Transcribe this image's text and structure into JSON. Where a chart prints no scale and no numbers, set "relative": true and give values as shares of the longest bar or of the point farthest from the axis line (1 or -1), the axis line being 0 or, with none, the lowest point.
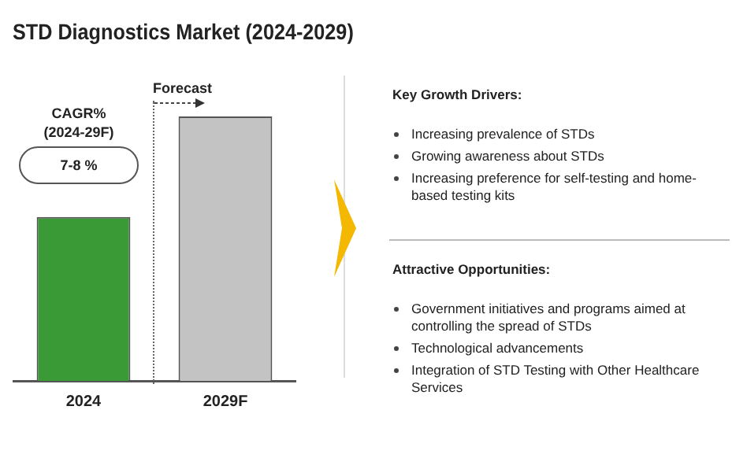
{
  "chart_data": {
    "type": "bar",
    "title": "STD Diagnostics Market (2024-2029)",
    "categories": [
      "2024",
      "2029F"
    ],
    "values": [
      0.62,
      1
    ],
    "colors": [
      "#3a9a35",
      "#c3c3c3"
    ],
    "relative": true,
    "annotations": [
      "Forecast",
      "CAGR%",
      "(2024-29F)",
      "7-8 %",
      "Key Growth Drivers:",
      "Increasing prevalence of STDs",
      "Growing awareness about STDs",
      "Increasing preference for self-testing and home-based testing kits",
      "Attractive Opportunities:",
      "Government initiatives and programs aimed at controlling the spread of STDs",
      "Technological advancements",
      "Integration of STD Testing with Other Healthcare Services"
    ]
  }
}
